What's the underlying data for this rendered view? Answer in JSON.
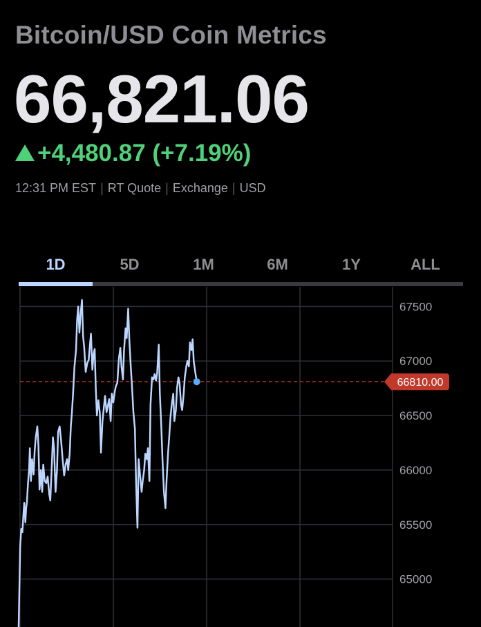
{
  "header": {
    "title": "Bitcoin/USD Coin Metrics",
    "price": "66,821.06",
    "change": "+4,480.87 (+7.19%)",
    "meta": {
      "time": "12:31 PM EST",
      "quote_type": "RT Quote",
      "source": "Exchange",
      "currency": "USD"
    }
  },
  "tabs": [
    {
      "label": "1D",
      "active": true
    },
    {
      "label": "5D",
      "active": false
    },
    {
      "label": "1M",
      "active": false
    },
    {
      "label": "6M",
      "active": false
    },
    {
      "label": "1Y",
      "active": false
    },
    {
      "label": "ALL",
      "active": false
    }
  ],
  "colors": {
    "up": "#4fd17a",
    "line": "#bcd6ff",
    "marker": "#5aa9ff",
    "reference": "#c0392b",
    "grid": "#2e3138"
  },
  "chart_data": {
    "type": "line",
    "y_ticks": [
      65000,
      65500,
      66000,
      66500,
      67000,
      67500
    ],
    "y_tick_labels": [
      "65000",
      "65500",
      "66000",
      "66500",
      "67000",
      "67500"
    ],
    "reference_line": {
      "value": 66810,
      "label": "66810.00"
    },
    "ylim": [
      64560,
      67680
    ],
    "xlim": [
      0,
      100
    ],
    "grid": true,
    "series": [
      {
        "points": [
          [
            0,
            64560
          ],
          [
            0.4,
            65300
          ],
          [
            0.7,
            65460
          ],
          [
            1.0,
            65430
          ],
          [
            1.3,
            65600
          ],
          [
            1.5,
            65700
          ],
          [
            1.8,
            65520
          ],
          [
            2.0,
            65650
          ],
          [
            2.2,
            65700
          ],
          [
            2.5,
            65880
          ],
          [
            2.8,
            66000
          ],
          [
            3.0,
            66200
          ],
          [
            3.3,
            65900
          ],
          [
            3.6,
            66100
          ],
          [
            4.0,
            65960
          ],
          [
            4.3,
            66180
          ],
          [
            4.6,
            66300
          ],
          [
            5.0,
            66400
          ],
          [
            5.3,
            66230
          ],
          [
            5.6,
            65820
          ],
          [
            6.0,
            66000
          ],
          [
            6.3,
            65800
          ],
          [
            6.6,
            66050
          ],
          [
            7.0,
            65900
          ],
          [
            7.4,
            65880
          ],
          [
            7.8,
            65940
          ],
          [
            8.2,
            65780
          ],
          [
            8.5,
            65720
          ],
          [
            8.9,
            66050
          ],
          [
            9.2,
            66300
          ],
          [
            9.5,
            66200
          ],
          [
            9.9,
            65800
          ],
          [
            10.3,
            66000
          ],
          [
            10.6,
            66350
          ],
          [
            11.0,
            66400
          ],
          [
            11.4,
            66270
          ],
          [
            11.8,
            66100
          ],
          [
            12.2,
            65950
          ],
          [
            12.6,
            66050
          ],
          [
            13.0,
            66100
          ],
          [
            13.3,
            66000
          ],
          [
            13.7,
            66150
          ],
          [
            14.0,
            66400
          ],
          [
            14.3,
            66530
          ],
          [
            14.6,
            66700
          ],
          [
            15.0,
            66950
          ],
          [
            15.4,
            67100
          ],
          [
            15.7,
            67380
          ],
          [
            16.0,
            67500
          ],
          [
            16.3,
            67260
          ],
          [
            16.6,
            67420
          ],
          [
            17.0,
            67560
          ],
          [
            17.3,
            67230
          ],
          [
            17.6,
            67120
          ],
          [
            18.0,
            66900
          ],
          [
            18.4,
            66980
          ],
          [
            18.8,
            67010
          ],
          [
            19.1,
            67130
          ],
          [
            19.4,
            67250
          ],
          [
            19.8,
            66920
          ],
          [
            20.1,
            67060
          ],
          [
            20.4,
            67110
          ],
          [
            20.7,
            66750
          ],
          [
            21.0,
            66500
          ],
          [
            21.4,
            66640
          ],
          [
            21.8,
            66520
          ],
          [
            22.1,
            66160
          ],
          [
            22.5,
            66450
          ],
          [
            22.8,
            66550
          ],
          [
            23.2,
            66680
          ],
          [
            23.6,
            66530
          ],
          [
            24.0,
            66600
          ],
          [
            24.3,
            66650
          ],
          [
            24.7,
            66450
          ],
          [
            25.0,
            66700
          ],
          [
            25.4,
            66620
          ],
          [
            25.8,
            66720
          ],
          [
            26.1,
            66770
          ],
          [
            26.5,
            66800
          ],
          [
            26.9,
            67020
          ],
          [
            27.3,
            67120
          ],
          [
            27.6,
            66950
          ],
          [
            28.0,
            66830
          ],
          [
            28.3,
            67100
          ],
          [
            28.7,
            67300
          ],
          [
            29.0,
            67210
          ],
          [
            29.4,
            67480
          ],
          [
            29.7,
            67200
          ],
          [
            30.1,
            66950
          ],
          [
            30.4,
            66780
          ],
          [
            30.8,
            66530
          ],
          [
            31.2,
            66380
          ],
          [
            31.5,
            65910
          ],
          [
            31.9,
            65470
          ],
          [
            32.2,
            66100
          ],
          [
            32.6,
            65950
          ],
          [
            33.0,
            65800
          ],
          [
            33.3,
            65900
          ],
          [
            33.7,
            66000
          ],
          [
            34.0,
            66150
          ],
          [
            34.4,
            66100
          ],
          [
            34.7,
            66200
          ],
          [
            35.1,
            65900
          ],
          [
            35.4,
            66600
          ],
          [
            35.8,
            66850
          ],
          [
            36.2,
            66830
          ],
          [
            36.5,
            66880
          ],
          [
            36.9,
            66820
          ],
          [
            37.2,
            66900
          ],
          [
            37.6,
            67150
          ],
          [
            37.9,
            66700
          ],
          [
            38.3,
            66400
          ],
          [
            38.6,
            66100
          ],
          [
            39.0,
            65800
          ],
          [
            39.4,
            65650
          ],
          [
            39.7,
            65900
          ],
          [
            40.1,
            66150
          ],
          [
            40.4,
            66300
          ],
          [
            40.8,
            66500
          ],
          [
            41.1,
            66600
          ],
          [
            41.5,
            66700
          ],
          [
            41.8,
            66450
          ],
          [
            42.2,
            66550
          ],
          [
            42.5,
            66750
          ],
          [
            42.9,
            66850
          ],
          [
            43.2,
            66800
          ],
          [
            43.6,
            66600
          ],
          [
            43.9,
            66550
          ],
          [
            44.3,
            66700
          ],
          [
            44.6,
            66850
          ],
          [
            45.0,
            66950
          ],
          [
            45.3,
            67000
          ],
          [
            45.7,
            66950
          ],
          [
            46.0,
            67170
          ],
          [
            46.4,
            67100
          ],
          [
            46.7,
            67200
          ],
          [
            47.0,
            67000
          ],
          [
            47.4,
            66900
          ],
          [
            47.8,
            66810
          ]
        ]
      }
    ],
    "last_point": [
      47.8,
      66810
    ]
  }
}
